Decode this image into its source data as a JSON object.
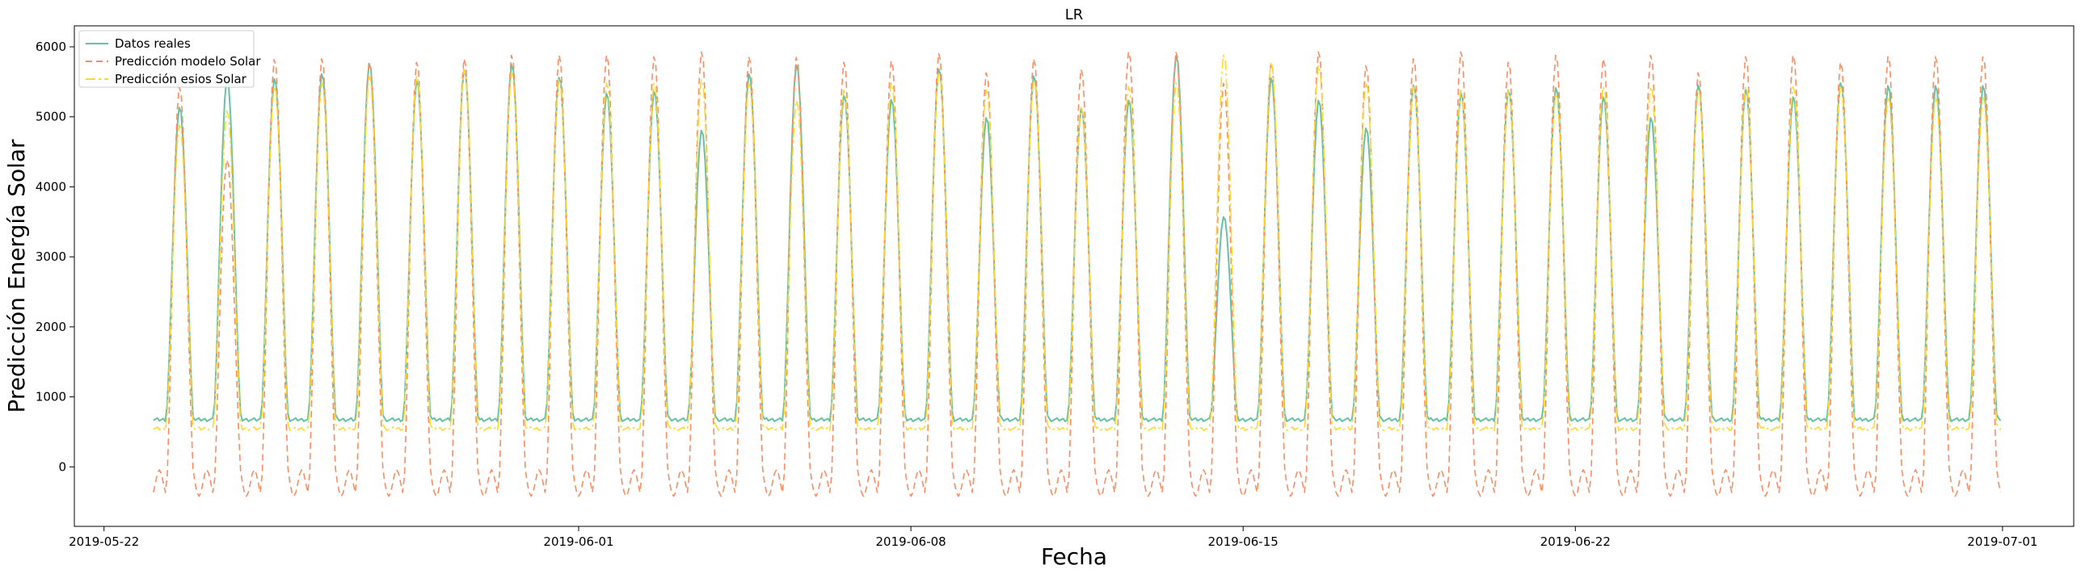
{
  "chart_data": {
    "type": "line",
    "title": "LR",
    "xlabel": "Fecha",
    "ylabel": "Predicción Energía Solar",
    "xlim": [
      "2019-05-21T09:00",
      "2019-07-02T12:00"
    ],
    "ylim": [
      -850,
      6300
    ],
    "x_tick_labels": [
      "2019-05-22",
      "2019-06-01",
      "2019-06-08",
      "2019-06-15",
      "2019-06-22",
      "2019-07-01"
    ],
    "y_tick_labels": [
      "0",
      "1000",
      "2000",
      "3000",
      "4000",
      "5000",
      "6000"
    ],
    "y_ticks": [
      0,
      1000,
      2000,
      3000,
      4000,
      5000,
      6000
    ],
    "grid": false,
    "legend_position": "top-left",
    "x_start": "2019-05-23T01:00",
    "x_end": "2019-06-30T23:00",
    "x_step_hours": 1,
    "series": [
      {
        "name": "Datos reales",
        "color": "#66c2a5",
        "style": "solid",
        "x_start": "2019-05-23T01:00",
        "daily_peaks": [
          5150,
          5560,
          5560,
          5630,
          5780,
          5530,
          5700,
          5760,
          5580,
          5350,
          5380,
          4820,
          5630,
          5760,
          5320,
          5260,
          5700,
          5000,
          5600,
          5130,
          5250,
          5890,
          3580,
          5570,
          5250,
          4850,
          5470,
          5360,
          5400,
          5430,
          5300,
          5000,
          5470,
          5400,
          5300,
          5500,
          5460
        ],
        "night_level": 650
      },
      {
        "name": "Predicción modelo Solar",
        "color": "#fc8d62",
        "style": "dashed",
        "daily_peaks": [
          5450,
          4400,
          5840,
          5850,
          5800,
          5800,
          5850,
          5900,
          5900,
          5900,
          5880,
          5950,
          5880,
          5870,
          5800,
          5820,
          5930,
          5650,
          5850,
          5700,
          5950,
          5950,
          5500,
          5800,
          5950,
          5750,
          5850,
          5950,
          5800,
          5900,
          5850,
          5900,
          5650,
          5880,
          5900,
          5800,
          5880
        ],
        "night_min": -420
      },
      {
        "name": "Predicción esios Solar",
        "color": "#ffd92f",
        "style": "dashdot",
        "daily_peaks": [
          4900,
          5100,
          5450,
          5500,
          5600,
          5600,
          5700,
          5650,
          5550,
          5500,
          5500,
          5550,
          5500,
          5250,
          5400,
          5500,
          5650,
          5400,
          5550,
          5150,
          5450,
          5500,
          5900,
          5800,
          5750,
          5500,
          5450,
          5400,
          5400,
          5350,
          5450,
          5450,
          5400,
          5450,
          5450,
          5450,
          5300
        ],
        "night_level": 520
      }
    ]
  }
}
